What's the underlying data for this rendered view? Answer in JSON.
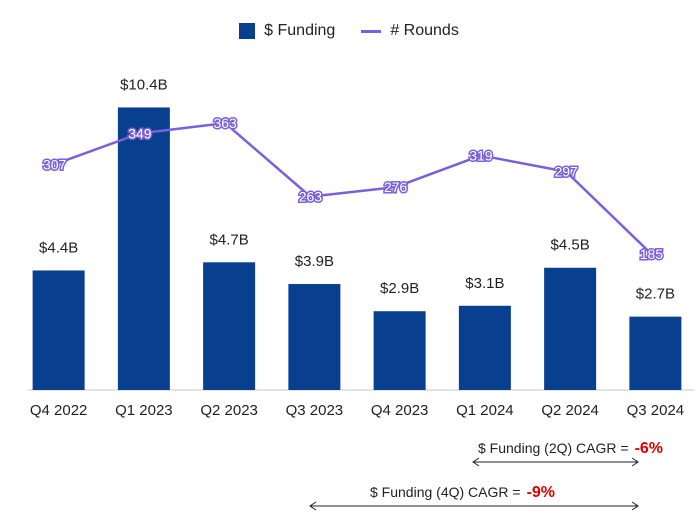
{
  "legend": {
    "funding": "$ Funding",
    "rounds": "# Rounds"
  },
  "colors": {
    "bar": "#083f8e",
    "line": "#7b5fdc",
    "cagr_value": "#e00000"
  },
  "chart_data": {
    "type": "bar",
    "categories": [
      "Q4 2022",
      "Q1 2023",
      "Q2 2023",
      "Q3 2023",
      "Q4 2023",
      "Q1 2024",
      "Q2 2024",
      "Q3 2024"
    ],
    "series": [
      {
        "name": "$ Funding",
        "type": "bar",
        "values": [
          4.4,
          10.4,
          4.7,
          3.9,
          2.9,
          3.1,
          4.5,
          2.7
        ],
        "labels": [
          "$4.4B",
          "$10.4B",
          "$4.7B",
          "$3.9B",
          "$2.9B",
          "$3.1B",
          "$4.5B",
          "$2.7B"
        ],
        "ylim": [
          0,
          11.3
        ]
      },
      {
        "name": "# Rounds",
        "type": "line",
        "values": [
          307,
          349,
          363,
          263,
          276,
          319,
          297,
          185
        ],
        "ylim": [
          0,
          476
        ]
      }
    ],
    "title": "",
    "xlabel": "",
    "ylabel": ""
  },
  "cagr": {
    "two_q": {
      "label": "$ Funding (2Q) CAGR =",
      "value": "-6%"
    },
    "four_q": {
      "label": "$ Funding (4Q) CAGR =",
      "value": "-9%"
    }
  }
}
